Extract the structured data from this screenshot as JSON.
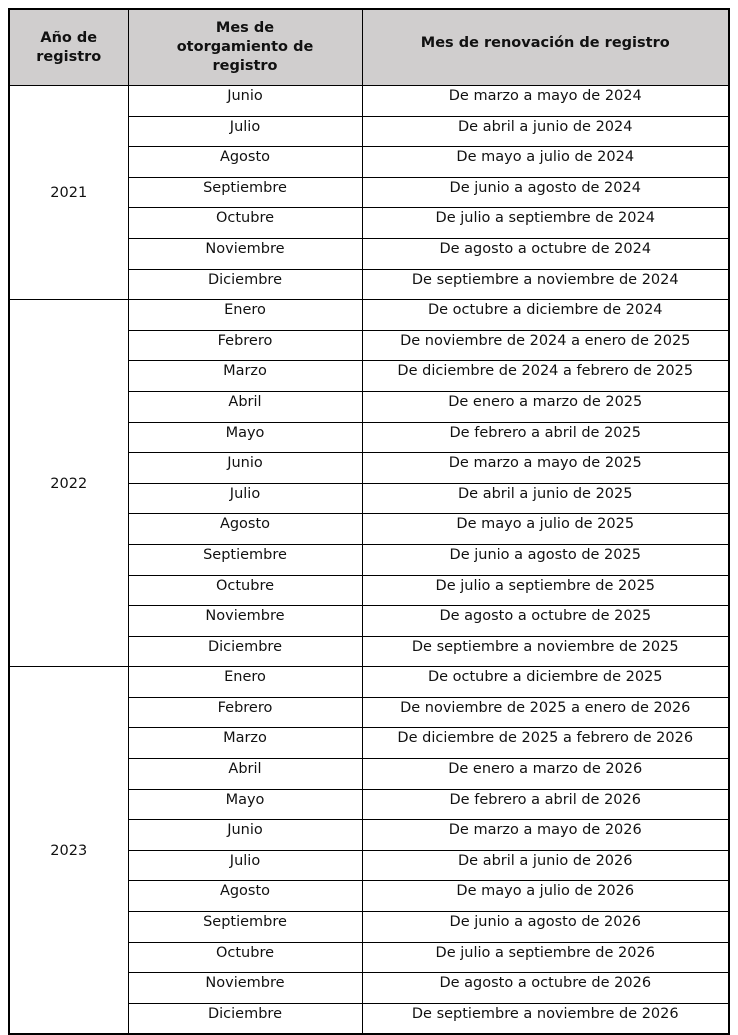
{
  "table": {
    "headers": [
      "Año de registro",
      "Mes de otorgamiento de registro",
      "Mes de renovación de registro"
    ],
    "header_bg": "#d0cece",
    "groups": [
      {
        "year": "2021",
        "rows": [
          [
            "Junio",
            "De marzo a mayo de 2024"
          ],
          [
            "Julio",
            "De abril a junio de 2024"
          ],
          [
            "Agosto",
            "De mayo a julio de 2024"
          ],
          [
            "Septiembre",
            "De junio a agosto de 2024"
          ],
          [
            "Octubre",
            "De julio a septiembre de 2024"
          ],
          [
            "Noviembre",
            "De agosto a octubre de 2024"
          ],
          [
            "Diciembre",
            "De septiembre a noviembre de 2024"
          ]
        ]
      },
      {
        "year": "2022",
        "rows": [
          [
            "Enero",
            "De octubre a diciembre de 2024"
          ],
          [
            "Febrero",
            "De noviembre de 2024 a enero de 2025"
          ],
          [
            "Marzo",
            "De diciembre de 2024 a febrero de 2025"
          ],
          [
            "Abril",
            "De enero a marzo de 2025"
          ],
          [
            "Mayo",
            "De febrero a abril de 2025"
          ],
          [
            "Junio",
            "De marzo a mayo de 2025"
          ],
          [
            "Julio",
            "De abril a junio de 2025"
          ],
          [
            "Agosto",
            "De mayo a julio de 2025"
          ],
          [
            "Septiembre",
            "De junio a agosto de 2025"
          ],
          [
            "Octubre",
            "De julio a septiembre de 2025"
          ],
          [
            "Noviembre",
            "De agosto a octubre de 2025"
          ],
          [
            "Diciembre",
            "De septiembre a noviembre de 2025"
          ]
        ]
      },
      {
        "year": "2023",
        "rows": [
          [
            "Enero",
            "De octubre a diciembre de 2025"
          ],
          [
            "Febrero",
            "De noviembre de 2025 a enero de 2026"
          ],
          [
            "Marzo",
            "De diciembre de 2025 a febrero de 2026"
          ],
          [
            "Abril",
            "De enero a marzo de 2026"
          ],
          [
            "Mayo",
            "De febrero a abril de 2026"
          ],
          [
            "Junio",
            "De marzo a mayo de 2026"
          ],
          [
            "Julio",
            "De abril a junio de 2026"
          ],
          [
            "Agosto",
            "De mayo a julio de 2026"
          ],
          [
            "Septiembre",
            "De junio a agosto de 2026"
          ],
          [
            "Octubre",
            "De julio a septiembre de 2026"
          ],
          [
            "Noviembre",
            "De agosto a octubre de 2026"
          ],
          [
            "Diciembre",
            "De septiembre a noviembre de 2026"
          ]
        ]
      }
    ]
  }
}
